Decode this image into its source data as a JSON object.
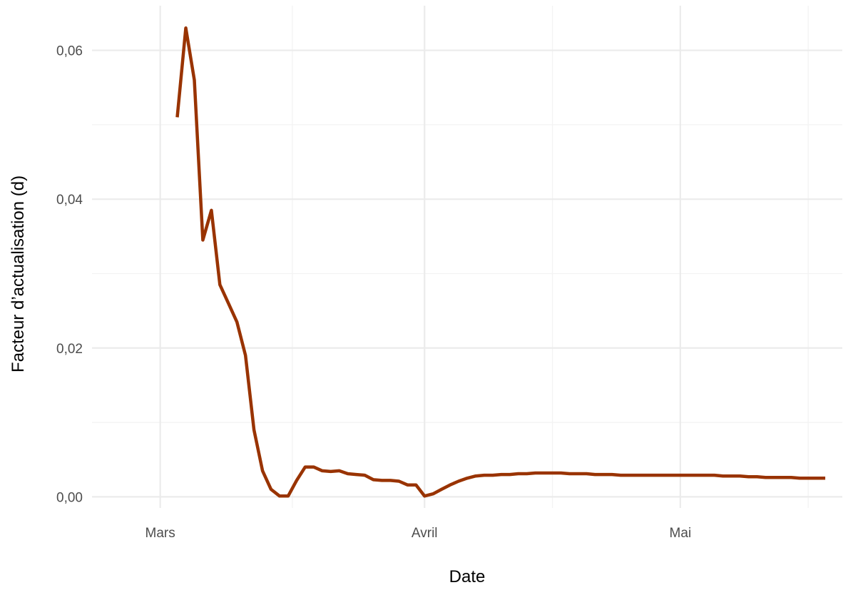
{
  "chart_data": {
    "type": "line",
    "title": "",
    "xlabel": "Date",
    "ylabel": "Facteur d’actualisation (d)",
    "x_tick_labels": [
      "Mars",
      "Avril",
      "Mai"
    ],
    "y_tick_labels": [
      "0,00",
      "0,02",
      "0,04",
      "0,06"
    ],
    "y_ticks": [
      0,
      0.02,
      0.04,
      0.06
    ],
    "ylim": [
      -0.0015,
      0.066
    ],
    "xlim": [
      "2020-02-22",
      "2020-05-20"
    ],
    "x_ticks": [
      "2020-03-01",
      "2020-04-01",
      "2020-05-01"
    ],
    "grid": true,
    "legend": "none",
    "colors": {
      "line": "#993300",
      "grid": "#ebebeb",
      "tick_text": "#4d4d4d"
    },
    "series": [
      {
        "x": [
          "2020-03-03",
          "2020-03-04",
          "2020-03-05",
          "2020-03-06",
          "2020-03-07",
          "2020-03-08",
          "2020-03-09",
          "2020-03-10",
          "2020-03-11",
          "2020-03-12",
          "2020-03-13",
          "2020-03-14",
          "2020-03-15",
          "2020-03-16",
          "2020-03-17",
          "2020-03-18",
          "2020-03-19",
          "2020-03-20",
          "2020-03-21",
          "2020-03-22",
          "2020-03-23",
          "2020-03-24",
          "2020-03-25",
          "2020-03-26",
          "2020-03-27",
          "2020-03-28",
          "2020-03-29",
          "2020-03-30",
          "2020-03-31",
          "2020-04-01",
          "2020-04-02",
          "2020-04-03",
          "2020-04-04",
          "2020-04-05",
          "2020-04-06",
          "2020-04-07",
          "2020-04-08",
          "2020-04-09",
          "2020-04-10",
          "2020-04-11",
          "2020-04-12",
          "2020-04-13",
          "2020-04-14",
          "2020-04-15",
          "2020-04-16",
          "2020-04-17",
          "2020-04-18",
          "2020-04-19",
          "2020-04-20",
          "2020-04-21",
          "2020-04-22",
          "2020-04-23",
          "2020-04-24",
          "2020-04-25",
          "2020-04-26",
          "2020-04-27",
          "2020-04-28",
          "2020-04-29",
          "2020-04-30",
          "2020-05-01",
          "2020-05-02",
          "2020-05-03",
          "2020-05-04",
          "2020-05-05",
          "2020-05-06",
          "2020-05-07",
          "2020-05-08",
          "2020-05-09",
          "2020-05-10",
          "2020-05-11",
          "2020-05-12",
          "2020-05-13",
          "2020-05-14",
          "2020-05-15",
          "2020-05-16",
          "2020-05-17",
          "2020-05-18"
        ],
        "values": [
          0.051,
          0.063,
          0.056,
          0.0345,
          0.0385,
          0.0285,
          0.026,
          0.0235,
          0.019,
          0.009,
          0.0035,
          0.001,
          0.0001,
          0.0001,
          0.0022,
          0.004,
          0.004,
          0.0035,
          0.0034,
          0.0035,
          0.0031,
          0.003,
          0.0029,
          0.0023,
          0.0022,
          0.0022,
          0.0021,
          0.0016,
          0.0016,
          0.0001,
          0.0004,
          0.001,
          0.0016,
          0.0021,
          0.0025,
          0.0028,
          0.0029,
          0.0029,
          0.003,
          0.003,
          0.0031,
          0.0031,
          0.0032,
          0.0032,
          0.0032,
          0.0032,
          0.0031,
          0.0031,
          0.0031,
          0.003,
          0.003,
          0.003,
          0.0029,
          0.0029,
          0.0029,
          0.0029,
          0.0029,
          0.0029,
          0.0029,
          0.0029,
          0.0029,
          0.0029,
          0.0029,
          0.0029,
          0.0028,
          0.0028,
          0.0028,
          0.0027,
          0.0027,
          0.0026,
          0.0026,
          0.0026,
          0.0026,
          0.0025,
          0.0025,
          0.0025,
          0.0025
        ]
      }
    ]
  }
}
